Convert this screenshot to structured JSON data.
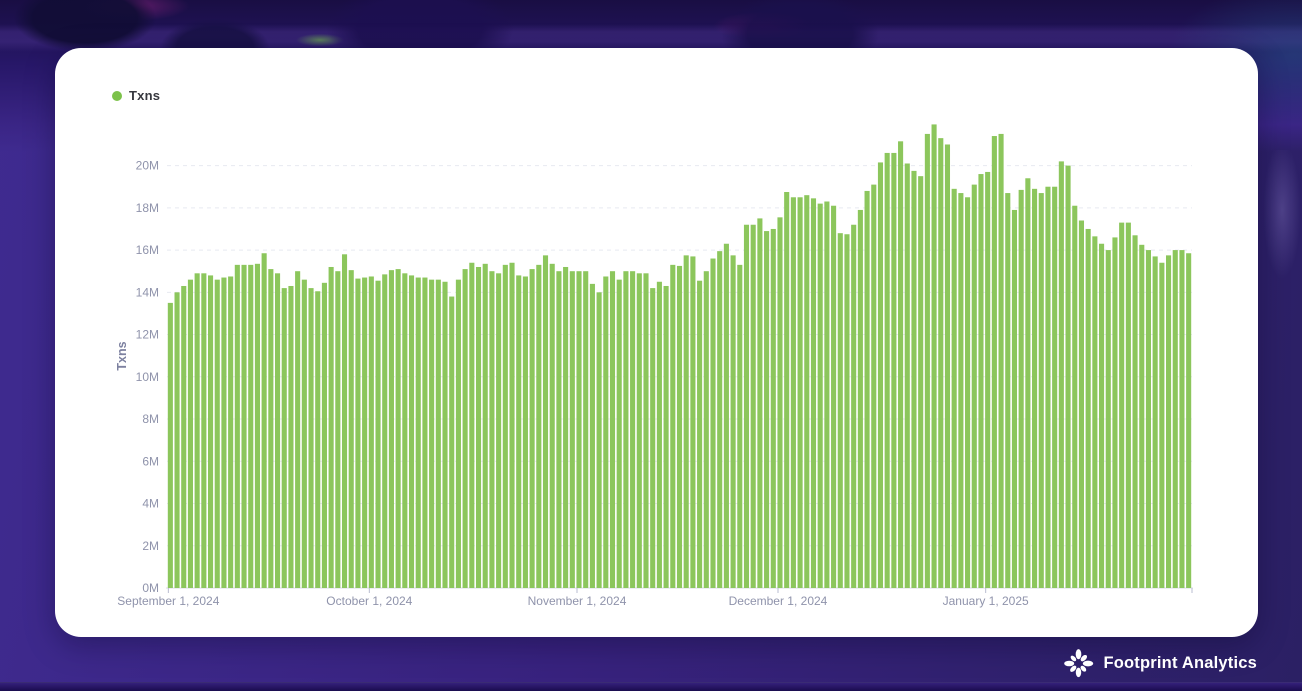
{
  "legend": {
    "label": "Txns",
    "dot_color": "#7cc24a"
  },
  "chart_data": {
    "type": "bar",
    "title": "",
    "ylabel": "Txns",
    "y_unit": "M",
    "ylim": [
      0,
      22.4
    ],
    "grid": "dashed-horizontal",
    "legend_position": "top-left",
    "axis_label_color": "#8f93ab",
    "axis_title_color": "#7d81a0",
    "grid_color": "#e8e9f1",
    "baseline_color": "#d9dbe6",
    "tick_color": "#b9bcd0",
    "y_ticks": [
      {
        "label": "0M",
        "value": 0
      },
      {
        "label": "2M",
        "value": 2
      },
      {
        "label": "4M",
        "value": 4
      },
      {
        "label": "6M",
        "value": 6
      },
      {
        "label": "8M",
        "value": 8
      },
      {
        "label": "10M",
        "value": 10
      },
      {
        "label": "12M",
        "value": 12
      },
      {
        "label": "14M",
        "value": 14
      },
      {
        "label": "16M",
        "value": 16
      },
      {
        "label": "18M",
        "value": 18
      },
      {
        "label": "20M",
        "value": 20
      }
    ],
    "x_ticks": [
      {
        "label": "September 1, 2024",
        "day_index": 0
      },
      {
        "label": "October 1, 2024",
        "day_index": 30
      },
      {
        "label": "November 1, 2024",
        "day_index": 61
      },
      {
        "label": "December 1, 2024",
        "day_index": 91
      },
      {
        "label": "January 1, 2025",
        "day_index": 122
      }
    ],
    "series": [
      {
        "name": "Txns",
        "color": "#8cc65c",
        "start_date": "2024-09-01",
        "frequency": "daily",
        "values_unit_millions": true,
        "values": [
          13.5,
          14.0,
          14.3,
          14.6,
          14.9,
          14.9,
          14.8,
          14.6,
          14.7,
          14.75,
          15.3,
          15.3,
          15.3,
          15.35,
          15.85,
          15.1,
          14.9,
          14.2,
          14.3,
          15.0,
          14.6,
          14.2,
          14.05,
          14.45,
          15.2,
          15.0,
          15.8,
          15.05,
          14.65,
          14.7,
          14.75,
          14.55,
          14.85,
          15.05,
          15.1,
          14.9,
          14.8,
          14.7,
          14.7,
          14.6,
          14.6,
          14.5,
          13.8,
          14.6,
          15.1,
          15.4,
          15.2,
          15.35,
          15.0,
          14.9,
          15.3,
          15.4,
          14.8,
          14.75,
          15.1,
          15.3,
          15.75,
          15.35,
          15.0,
          15.2,
          15.0,
          15.0,
          15.0,
          14.4,
          14.0,
          14.75,
          15.0,
          14.6,
          15.0,
          15.0,
          14.9,
          14.9,
          14.2,
          14.5,
          14.3,
          15.3,
          15.25,
          15.75,
          15.7,
          14.55,
          15.0,
          15.6,
          15.95,
          16.3,
          15.75,
          15.3,
          17.2,
          17.2,
          17.5,
          16.9,
          17.0,
          17.55,
          18.75,
          18.5,
          18.5,
          18.6,
          18.45,
          18.2,
          18.3,
          18.1,
          16.8,
          16.75,
          17.2,
          17.9,
          18.8,
          19.1,
          20.15,
          20.6,
          20.6,
          21.15,
          20.1,
          19.75,
          19.5,
          21.5,
          21.95,
          21.3,
          21.0,
          18.9,
          18.7,
          18.5,
          19.1,
          19.6,
          19.7,
          21.4,
          21.5,
          18.7,
          17.9,
          18.85,
          19.4,
          18.9,
          18.7,
          19.0,
          19.0,
          20.2,
          20.0,
          18.1,
          17.4,
          17.0,
          16.65,
          16.3,
          16.0,
          16.6,
          17.3,
          17.3,
          16.7,
          16.25,
          16.0,
          15.7,
          15.4,
          15.75,
          16.0,
          16.0,
          15.85
        ]
      }
    ]
  },
  "footer": {
    "brand": "Footprint Analytics"
  }
}
